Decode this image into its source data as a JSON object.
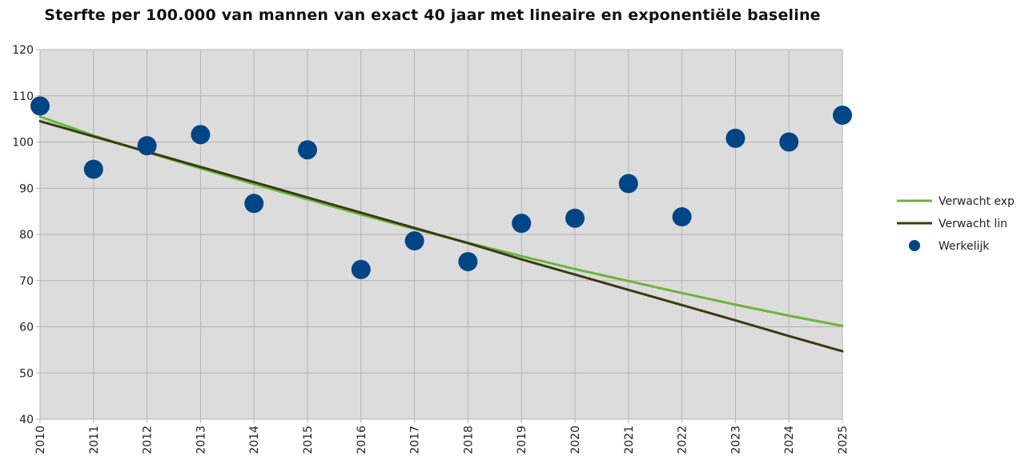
{
  "chart_data": {
    "type": "line",
    "title": "Sterfte per 100.000 van mannen van exact 40 jaar met lineaire en exponentiële baseline",
    "xlabel": "",
    "ylabel": "",
    "x": [
      2010,
      2011,
      2012,
      2013,
      2014,
      2015,
      2016,
      2017,
      2018,
      2019,
      2020,
      2021,
      2022,
      2023,
      2024,
      2025
    ],
    "x_ticks": [
      "2010",
      "2011",
      "2012",
      "2013",
      "2014",
      "2015",
      "2016",
      "2017",
      "2018",
      "2019",
      "2020",
      "2021",
      "2022",
      "2023",
      "2024",
      "2025"
    ],
    "y_ticks": [
      "40",
      "50",
      "60",
      "70",
      "80",
      "90",
      "100",
      "110",
      "120"
    ],
    "ylim": [
      40,
      120
    ],
    "grid": true,
    "legend_position": "right",
    "series": [
      {
        "name": "Verwacht exp",
        "kind": "line",
        "color": "#6db33f",
        "values": [
          105.5,
          101.4,
          97.8,
          94.3,
          90.9,
          87.6,
          84.3,
          81.2,
          78.2,
          75.3,
          72.5,
          69.9,
          67.3,
          64.8,
          62.4,
          60.2
        ]
      },
      {
        "name": "Verwacht lin",
        "kind": "line",
        "color": "#3b3b12",
        "values": [
          104.5,
          101.2,
          97.9,
          94.6,
          91.3,
          88.0,
          84.7,
          81.4,
          78.1,
          74.6,
          71.3,
          68.0,
          64.7,
          61.4,
          58.0,
          54.7
        ]
      },
      {
        "name": "Werkelijk",
        "kind": "scatter",
        "color": "#004586",
        "values": [
          107.8,
          94.1,
          99.2,
          101.6,
          86.7,
          98.3,
          72.4,
          78.6,
          74.1,
          82.4,
          83.5,
          91.0,
          83.8,
          100.8,
          100.0,
          105.8
        ]
      }
    ]
  }
}
